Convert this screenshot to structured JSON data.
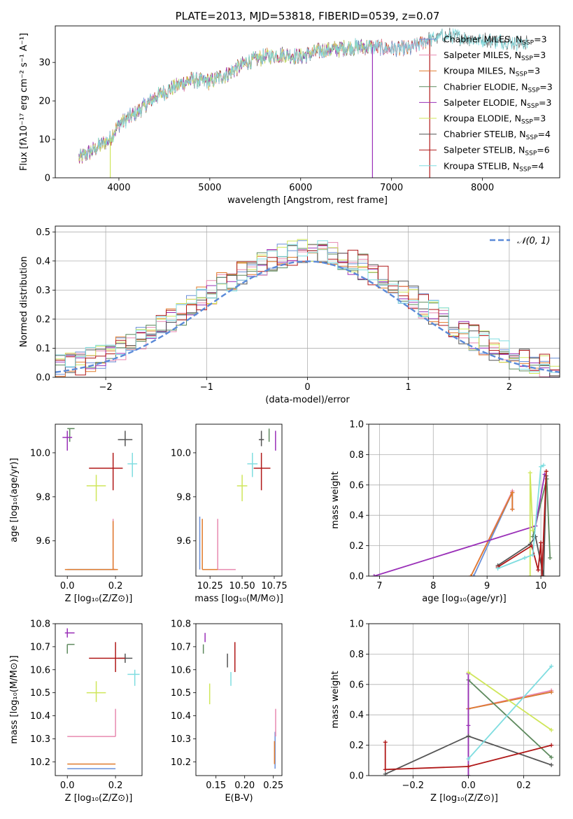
{
  "colors": {
    "chabrier_miles": "#6a8fd8",
    "salpeter_miles": "#e889b0",
    "kroupa_miles": "#e07b2c",
    "chabrier_elodie": "#5e8a5e",
    "salpeter_elodie": "#9a30b8",
    "kroupa_elodie": "#cfe65a",
    "chabrier_stelib": "#555555",
    "salpeter_stelib": "#b01818",
    "kroupa_stelib": "#7fdde0",
    "normal_curve": "#5b8ad8"
  },
  "chart_data": [
    {
      "id": "spectrum",
      "type": "line",
      "title": "PLATE=2013, MJD=53818, FIBERID=0539, z=0.07",
      "xlabel": "wavelength [Angstrom, rest frame]",
      "ylabel": "Flux [fλ10⁻¹⁷ erg cm⁻² s⁻¹ A⁻¹]",
      "xlim": [
        3300,
        8850
      ],
      "ylim": [
        0,
        39.5
      ],
      "xticks": [
        4000,
        5000,
        6000,
        7000,
        8000
      ],
      "yticks": [
        0,
        10,
        20,
        30
      ],
      "grid": false,
      "legend_position": "right",
      "legend": [
        {
          "label": "Chabrier MILES, N_SSP=3",
          "color_key": "chabrier_miles"
        },
        {
          "label": "Salpeter MILES, N_SSP=3",
          "color_key": "salpeter_miles"
        },
        {
          "label": "Kroupa MILES, N_SSP=3",
          "color_key": "kroupa_miles"
        },
        {
          "label": "Chabrier ELODIE, N_SSP=3",
          "color_key": "chabrier_elodie"
        },
        {
          "label": "Salpeter ELODIE, N_SSP=3",
          "color_key": "salpeter_elodie"
        },
        {
          "label": "Kroupa ELODIE, N_SSP=3",
          "color_key": "kroupa_elodie"
        },
        {
          "label": "Chabrier STELIB, N_SSP=4",
          "color_key": "chabrier_stelib"
        },
        {
          "label": "Salpeter STELIB, N_SSP=6",
          "color_key": "salpeter_stelib"
        },
        {
          "label": "Kroupa STELIB, N_SSP=4",
          "color_key": "kroupa_stelib"
        }
      ],
      "continuum_x": [
        3560,
        3700,
        3900,
        4000,
        4200,
        4400,
        4600,
        4800,
        5000,
        5200,
        5400,
        5600,
        5800,
        6000,
        6200,
        6400,
        6600,
        6800,
        7000,
        7200,
        7400,
        7600,
        7800,
        8000,
        8200,
        8500
      ],
      "continuum_y": [
        5,
        7,
        10,
        14,
        17,
        21,
        23.5,
        25.5,
        25,
        27,
        30,
        31.5,
        32,
        31.5,
        33,
        33.5,
        34,
        34,
        33.5,
        33.5,
        36,
        37,
        36.5,
        36,
        35.5,
        35
      ],
      "series_end_x": {
        "chabrier_miles": 7410,
        "salpeter_miles": 7410,
        "kroupa_miles": 7410,
        "chabrier_elodie": 6790,
        "salpeter_elodie": 6790,
        "kroupa_elodie": 6790,
        "chabrier_stelib": 8500,
        "salpeter_stelib": 7420,
        "kroupa_stelib": 8500
      },
      "dropout_x": {
        "kroupa_elodie": 3905,
        "salpeter_elodie": 6790,
        "salpeter_stelib": 7420
      }
    },
    {
      "id": "residuals",
      "type": "histogram",
      "xlabel": "(data-model)/error",
      "ylabel": "Normed distribution",
      "xlim": [
        -2.5,
        2.5
      ],
      "ylim": [
        0,
        0.52
      ],
      "xticks": [
        -2,
        -1,
        0,
        1,
        2
      ],
      "yticks": [
        0.0,
        0.1,
        0.2,
        0.3,
        0.4,
        0.5
      ],
      "grid": true,
      "legend": [
        {
          "label": "𝒩(0, 1)",
          "color_key": "normal_curve"
        }
      ],
      "legend_position": "top-right",
      "bin_width": 0.1,
      "series": [
        "chabrier_miles",
        "salpeter_miles",
        "kroupa_miles",
        "chabrier_elodie",
        "salpeter_elodie",
        "kroupa_elodie",
        "chabrier_stelib",
        "salpeter_stelib",
        "kroupa_stelib"
      ]
    },
    {
      "id": "age_vs_z",
      "type": "scatter",
      "xlabel": "Z [log₁₀(Z/Z⊙)]",
      "ylabel": "age  [log₁₀(age/yr)]",
      "xlim": [
        -0.05,
        0.31
      ],
      "ylim": [
        9.44,
        10.13
      ],
      "xticks": [
        0.0,
        0.2
      ],
      "yticks": [
        9.6,
        9.8,
        10.0
      ],
      "points": [
        {
          "key": "chabrier_miles",
          "x": 0.19,
          "y": 9.47,
          "xerr": [
            0.19,
            0.01
          ],
          "yerr": [
            0.0,
            0.0
          ]
        },
        {
          "key": "salpeter_miles",
          "x": 0.19,
          "y": 9.47,
          "xerr": [
            0.0,
            0.01
          ],
          "yerr": [
            0.0,
            0.23
          ]
        },
        {
          "key": "kroupa_miles",
          "x": 0.19,
          "y": 9.47,
          "xerr": [
            0.2,
            0.02
          ],
          "yerr": [
            0.0,
            0.22
          ]
        },
        {
          "key": "chabrier_elodie",
          "x": 0.01,
          "y": 10.11,
          "xerr": [
            0.01,
            0.02
          ],
          "yerr": [
            0.06,
            0.0
          ]
        },
        {
          "key": "salpeter_elodie",
          "x": 0.0,
          "y": 10.07,
          "xerr": [
            0.02,
            0.02
          ],
          "yerr": [
            0.06,
            0.03
          ]
        },
        {
          "key": "kroupa_elodie",
          "x": 0.12,
          "y": 9.85,
          "xerr": [
            0.04,
            0.04
          ],
          "yerr": [
            0.07,
            0.05
          ]
        },
        {
          "key": "chabrier_stelib",
          "x": 0.24,
          "y": 10.06,
          "xerr": [
            0.03,
            0.03
          ],
          "yerr": [
            0.03,
            0.04
          ]
        },
        {
          "key": "salpeter_stelib",
          "x": 0.19,
          "y": 9.93,
          "xerr": [
            0.1,
            0.04
          ],
          "yerr": [
            0.1,
            0.07
          ]
        },
        {
          "key": "kroupa_stelib",
          "x": 0.27,
          "y": 9.95,
          "xerr": [
            0.02,
            0.02
          ],
          "yerr": [
            0.06,
            0.05
          ]
        }
      ]
    },
    {
      "id": "age_vs_mass",
      "type": "scatter",
      "xlabel": "mass [log₁₀(M/M⊙)]",
      "ylabel": "",
      "xlim": [
        10.14,
        10.81
      ],
      "ylim": [
        9.44,
        10.13
      ],
      "xticks": [
        10.25,
        10.5,
        10.75
      ],
      "yticks": [
        9.6,
        9.8,
        10.0
      ],
      "points": [
        {
          "key": "chabrier_miles",
          "x": 10.17,
          "y": 9.47,
          "xerr": [
            0.0,
            0.0
          ],
          "yerr": [
            0.0,
            0.24
          ]
        },
        {
          "key": "salpeter_miles",
          "x": 10.31,
          "y": 9.47,
          "xerr": [
            0.0,
            0.14
          ],
          "yerr": [
            0.0,
            0.23
          ]
        },
        {
          "key": "kroupa_miles",
          "x": 10.19,
          "y": 9.47,
          "xerr": [
            0.0,
            0.12
          ],
          "yerr": [
            0.0,
            0.23
          ]
        },
        {
          "key": "chabrier_elodie",
          "x": 10.71,
          "y": 10.11,
          "xerr": [
            0.0,
            0.0
          ],
          "yerr": [
            0.06,
            0.0
          ]
        },
        {
          "key": "salpeter_elodie",
          "x": 10.76,
          "y": 10.07,
          "xerr": [
            0.0,
            0.0
          ],
          "yerr": [
            0.06,
            0.03
          ]
        },
        {
          "key": "kroupa_elodie",
          "x": 10.5,
          "y": 9.85,
          "xerr": [
            0.04,
            0.04
          ],
          "yerr": [
            0.07,
            0.05
          ]
        },
        {
          "key": "chabrier_stelib",
          "x": 10.65,
          "y": 10.06,
          "xerr": [
            0.02,
            0.02
          ],
          "yerr": [
            0.03,
            0.04
          ]
        },
        {
          "key": "salpeter_stelib",
          "x": 10.65,
          "y": 9.93,
          "xerr": [
            0.06,
            0.07
          ],
          "yerr": [
            0.1,
            0.07
          ]
        },
        {
          "key": "kroupa_stelib",
          "x": 10.58,
          "y": 9.95,
          "xerr": [
            0.04,
            0.04
          ],
          "yerr": [
            0.06,
            0.05
          ]
        }
      ]
    },
    {
      "id": "weight_vs_age",
      "type": "line",
      "xlabel": "age  [log₁₀(age/yr)]",
      "ylabel": "mass weight",
      "xlim": [
        6.8,
        10.35
      ],
      "ylim": [
        0,
        1.0
      ],
      "xticks": [
        7,
        8,
        9,
        10
      ],
      "yticks": [
        0.0,
        0.2,
        0.4,
        0.6,
        0.8,
        1.0
      ],
      "grid": true,
      "series": [
        {
          "key": "chabrier_miles",
          "x": [
            8.75,
            9.47,
            9.47
          ],
          "y": [
            0.0,
            0.55,
            0.44
          ]
        },
        {
          "key": "salpeter_miles",
          "x": [
            8.7,
            9.47,
            9.47
          ],
          "y": [
            0.0,
            0.56,
            0.44
          ]
        },
        {
          "key": "kroupa_miles",
          "x": [
            8.7,
            9.47,
            9.47
          ],
          "y": [
            0.0,
            0.55,
            0.44
          ]
        },
        {
          "key": "chabrier_elodie",
          "x": [
            9.85,
            10.11,
            10.17
          ],
          "y": [
            0.26,
            0.64,
            0.12
          ]
        },
        {
          "key": "salpeter_elodie",
          "x": [
            6.9,
            9.9,
            10.07
          ],
          "y": [
            0.0,
            0.33,
            0.67
          ]
        },
        {
          "key": "kroupa_elodie",
          "x": [
            9.8,
            9.8,
            9.85
          ],
          "y": [
            0.0,
            0.68,
            0.3
          ]
        },
        {
          "key": "chabrier_stelib",
          "x": [
            9.2,
            9.8,
            9.9,
            10.05,
            10.1
          ],
          "y": [
            0.07,
            0.21,
            0.26,
            0.0,
            0.66
          ]
        },
        {
          "key": "salpeter_stelib",
          "x": [
            9.2,
            9.83,
            9.95,
            10.0,
            10.02,
            10.1
          ],
          "y": [
            0.06,
            0.2,
            0.04,
            0.22,
            0.0,
            0.69
          ]
        },
        {
          "key": "kroupa_stelib",
          "x": [
            9.2,
            9.7,
            9.85,
            10.0,
            10.05
          ],
          "y": [
            0.05,
            0.12,
            0.14,
            0.72,
            0.73
          ]
        }
      ]
    },
    {
      "id": "mass_vs_z",
      "type": "scatter",
      "xlabel": "Z [log₁₀(Z/Z⊙)]",
      "ylabel": "mass [log₁₀(M/M⊙)]",
      "xlim": [
        -0.05,
        0.31
      ],
      "ylim": [
        10.14,
        10.8
      ],
      "xticks": [
        0.0,
        0.2
      ],
      "yticks": [
        10.2,
        10.3,
        10.4,
        10.5,
        10.6,
        10.7,
        10.8
      ],
      "points": [
        {
          "key": "chabrier_miles",
          "x": 0.2,
          "y": 10.17,
          "xerr": [
            0.2,
            0.0
          ],
          "yerr": [
            0.0,
            0.0
          ]
        },
        {
          "key": "salpeter_miles",
          "x": 0.2,
          "y": 10.31,
          "xerr": [
            0.2,
            0.0
          ],
          "yerr": [
            0.0,
            0.12
          ]
        },
        {
          "key": "kroupa_miles",
          "x": 0.2,
          "y": 10.19,
          "xerr": [
            0.2,
            0.0
          ],
          "yerr": [
            0.0,
            0.0
          ]
        },
        {
          "key": "chabrier_elodie",
          "x": 0.0,
          "y": 10.71,
          "xerr": [
            0.0,
            0.03
          ],
          "yerr": [
            0.04,
            0.0
          ]
        },
        {
          "key": "salpeter_elodie",
          "x": 0.0,
          "y": 10.76,
          "xerr": [
            0.01,
            0.03
          ],
          "yerr": [
            0.02,
            0.02
          ]
        },
        {
          "key": "kroupa_elodie",
          "x": 0.12,
          "y": 10.5,
          "xerr": [
            0.04,
            0.04
          ],
          "yerr": [
            0.04,
            0.05
          ]
        },
        {
          "key": "chabrier_stelib",
          "x": 0.24,
          "y": 10.65,
          "xerr": [
            0.03,
            0.03
          ],
          "yerr": [
            0.02,
            0.02
          ]
        },
        {
          "key": "salpeter_stelib",
          "x": 0.2,
          "y": 10.65,
          "xerr": [
            0.11,
            0.04
          ],
          "yerr": [
            0.06,
            0.07
          ]
        },
        {
          "key": "kroupa_stelib",
          "x": 0.28,
          "y": 10.58,
          "xerr": [
            0.03,
            0.02
          ],
          "yerr": [
            0.05,
            0.02
          ]
        }
      ]
    },
    {
      "id": "mass_vs_ebv",
      "type": "scatter",
      "xlabel": "E(B-V)",
      "ylabel": "",
      "xlim": [
        0.115,
        0.265
      ],
      "ylim": [
        10.14,
        10.8
      ],
      "xticks": [
        0.15,
        0.2,
        0.25
      ],
      "yticks": [
        10.2,
        10.3,
        10.4,
        10.5,
        10.6,
        10.7,
        10.8
      ],
      "points": [
        {
          "key": "chabrier_miles",
          "x": 0.253,
          "y": 10.17,
          "xerr": [
            0.0,
            0.0
          ],
          "yerr": [
            0.0,
            0.16
          ]
        },
        {
          "key": "salpeter_miles",
          "x": 0.254,
          "y": 10.31,
          "xerr": [
            0.0,
            0.0
          ],
          "yerr": [
            0.0,
            0.12
          ]
        },
        {
          "key": "kroupa_miles",
          "x": 0.252,
          "y": 10.19,
          "xerr": [
            0.0,
            0.0
          ],
          "yerr": [
            0.0,
            0.1
          ]
        },
        {
          "key": "chabrier_elodie",
          "x": 0.128,
          "y": 10.71,
          "xerr": [
            0.0,
            0.0
          ],
          "yerr": [
            0.04,
            0.0
          ]
        },
        {
          "key": "salpeter_elodie",
          "x": 0.131,
          "y": 10.74,
          "xerr": [
            0.0,
            0.0
          ],
          "yerr": [
            0.02,
            0.02
          ]
        },
        {
          "key": "kroupa_elodie",
          "x": 0.139,
          "y": 10.5,
          "xerr": [
            0.0,
            0.0
          ],
          "yerr": [
            0.05,
            0.04
          ]
        },
        {
          "key": "chabrier_stelib",
          "x": 0.17,
          "y": 10.64,
          "xerr": [
            0.0,
            0.0
          ],
          "yerr": [
            0.03,
            0.03
          ]
        },
        {
          "key": "salpeter_stelib",
          "x": 0.183,
          "y": 10.66,
          "xerr": [
            0.0,
            0.0
          ],
          "yerr": [
            0.07,
            0.06
          ]
        },
        {
          "key": "kroupa_stelib",
          "x": 0.176,
          "y": 10.56,
          "xerr": [
            0.0,
            0.0
          ],
          "yerr": [
            0.03,
            0.03
          ]
        }
      ]
    },
    {
      "id": "weight_vs_z",
      "type": "line",
      "xlabel": "Z [log₁₀(Z/Z⊙)]",
      "ylabel": "mass weight",
      "xlim": [
        -0.36,
        0.33
      ],
      "ylim": [
        0,
        1.0
      ],
      "xticks": [
        -0.2,
        0.0,
        0.2
      ],
      "yticks": [
        0.0,
        0.2,
        0.4,
        0.6,
        0.8,
        1.0
      ],
      "grid": true,
      "series": [
        {
          "key": "chabrier_miles",
          "x": [
            0.0,
            0.3
          ],
          "y": [
            0.44,
            0.55
          ]
        },
        {
          "key": "salpeter_miles",
          "x": [
            0.0,
            0.3
          ],
          "y": [
            0.44,
            0.56
          ]
        },
        {
          "key": "kroupa_miles",
          "x": [
            0.0,
            0.3
          ],
          "y": [
            0.44,
            0.55
          ]
        },
        {
          "key": "chabrier_elodie",
          "x": [
            0.0,
            0.0,
            0.3
          ],
          "y": [
            0.0,
            0.63,
            0.12
          ]
        },
        {
          "key": "salpeter_elodie",
          "x": [
            0.0,
            0.0,
            0.0
          ],
          "y": [
            0.0,
            0.33,
            0.67
          ]
        },
        {
          "key": "kroupa_elodie",
          "x": [
            0.0,
            0.3
          ],
          "y": [
            0.68,
            0.3
          ]
        },
        {
          "key": "chabrier_stelib",
          "x": [
            -0.3,
            0.0,
            0.3
          ],
          "y": [
            0.01,
            0.26,
            0.07
          ]
        },
        {
          "key": "salpeter_stelib",
          "x": [
            -0.3,
            -0.3,
            0.0,
            0.3
          ],
          "y": [
            0.22,
            0.04,
            0.06,
            0.2
          ]
        },
        {
          "key": "kroupa_stelib",
          "x": [
            0.0,
            0.3
          ],
          "y": [
            0.11,
            0.72
          ]
        }
      ]
    }
  ]
}
